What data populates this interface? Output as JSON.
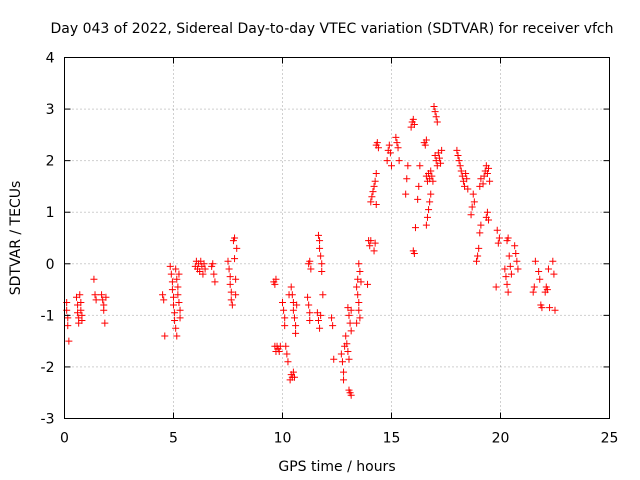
{
  "chart_data": {
    "type": "scatter",
    "title": "Day 043 of 2022, Sidereal Day-to-day VTEC variation (SDTVAR) for receiver vfch",
    "xlabel": "GPS time / hours",
    "ylabel": "SDTVAR / TECUs",
    "xlim": [
      0,
      25
    ],
    "ylim": [
      -3,
      4
    ],
    "xticks": [
      0,
      5,
      10,
      15,
      20,
      25
    ],
    "yticks": [
      -3,
      -2,
      -1,
      0,
      1,
      2,
      3,
      4
    ],
    "grid": true,
    "marker": "+",
    "color": "#ff0000",
    "series": [
      {
        "name": "SDTVAR",
        "points": [
          [
            0.1,
            -0.75
          ],
          [
            0.1,
            -0.9
          ],
          [
            0.15,
            -1.05
          ],
          [
            0.15,
            -1.2
          ],
          [
            0.2,
            -1.5
          ],
          [
            0.55,
            -0.65
          ],
          [
            0.6,
            -0.8
          ],
          [
            0.6,
            -0.95
          ],
          [
            0.65,
            -1.05
          ],
          [
            0.65,
            -1.15
          ],
          [
            0.7,
            -0.6
          ],
          [
            0.75,
            -0.75
          ],
          [
            0.75,
            -0.9
          ],
          [
            0.8,
            -1.0
          ],
          [
            0.8,
            -1.1
          ],
          [
            1.35,
            -0.3
          ],
          [
            1.4,
            -0.6
          ],
          [
            1.45,
            -0.7
          ],
          [
            1.7,
            -0.6
          ],
          [
            1.75,
            -0.7
          ],
          [
            1.8,
            -0.8
          ],
          [
            1.8,
            -0.9
          ],
          [
            1.85,
            -1.15
          ],
          [
            1.9,
            -0.65
          ],
          [
            4.5,
            -0.6
          ],
          [
            4.55,
            -0.7
          ],
          [
            4.6,
            -1.4
          ],
          [
            4.85,
            -0.05
          ],
          [
            4.9,
            -0.2
          ],
          [
            4.95,
            -0.35
          ],
          [
            4.95,
            -0.5
          ],
          [
            5.0,
            -0.65
          ],
          [
            5.0,
            -0.8
          ],
          [
            5.05,
            -0.95
          ],
          [
            5.05,
            -1.1
          ],
          [
            5.1,
            -1.25
          ],
          [
            5.15,
            -1.4
          ],
          [
            5.1,
            -0.1
          ],
          [
            5.15,
            -0.3
          ],
          [
            5.2,
            -0.45
          ],
          [
            5.2,
            -0.6
          ],
          [
            5.25,
            -0.75
          ],
          [
            5.3,
            -0.9
          ],
          [
            5.3,
            -1.05
          ],
          [
            5.25,
            -0.2
          ],
          [
            6.0,
            -0.05
          ],
          [
            6.05,
            0.05
          ],
          [
            6.1,
            -0.1
          ],
          [
            6.15,
            0.0
          ],
          [
            6.2,
            -0.15
          ],
          [
            6.25,
            0.05
          ],
          [
            6.3,
            -0.05
          ],
          [
            6.35,
            -0.2
          ],
          [
            6.4,
            0.0
          ],
          [
            6.45,
            -0.1
          ],
          [
            6.75,
            -0.05
          ],
          [
            6.8,
            0.0
          ],
          [
            6.85,
            -0.2
          ],
          [
            6.9,
            -0.35
          ],
          [
            7.5,
            0.05
          ],
          [
            7.55,
            -0.1
          ],
          [
            7.6,
            -0.25
          ],
          [
            7.6,
            -0.4
          ],
          [
            7.65,
            -0.55
          ],
          [
            7.65,
            -0.7
          ],
          [
            7.7,
            -0.8
          ],
          [
            7.75,
            0.45
          ],
          [
            7.8,
            0.5
          ],
          [
            7.8,
            0.1
          ],
          [
            7.85,
            -0.3
          ],
          [
            7.85,
            -0.6
          ],
          [
            7.9,
            0.3
          ],
          [
            9.6,
            -0.35
          ],
          [
            9.65,
            -0.4
          ],
          [
            9.7,
            -0.3
          ],
          [
            9.65,
            -1.6
          ],
          [
            9.7,
            -1.7
          ],
          [
            9.75,
            -1.6
          ],
          [
            9.8,
            -1.65
          ],
          [
            9.85,
            -1.7
          ],
          [
            9.9,
            -1.6
          ],
          [
            10.0,
            -0.75
          ],
          [
            10.05,
            -0.9
          ],
          [
            10.1,
            -1.05
          ],
          [
            10.1,
            -1.2
          ],
          [
            10.15,
            -1.6
          ],
          [
            10.2,
            -1.75
          ],
          [
            10.25,
            -1.9
          ],
          [
            10.3,
            -0.6
          ],
          [
            10.35,
            -2.25
          ],
          [
            10.4,
            -2.15
          ],
          [
            10.45,
            -2.2
          ],
          [
            10.5,
            -2.1
          ],
          [
            10.55,
            -2.2
          ],
          [
            10.4,
            -0.45
          ],
          [
            10.45,
            -0.6
          ],
          [
            10.5,
            -0.75
          ],
          [
            10.5,
            -0.9
          ],
          [
            10.55,
            -1.05
          ],
          [
            10.6,
            -1.2
          ],
          [
            10.6,
            -1.35
          ],
          [
            10.65,
            -0.8
          ],
          [
            11.15,
            -0.65
          ],
          [
            11.2,
            -0.8
          ],
          [
            11.25,
            -0.95
          ],
          [
            11.25,
            -1.1
          ],
          [
            11.2,
            0.0
          ],
          [
            11.25,
            0.05
          ],
          [
            11.3,
            -0.1
          ],
          [
            11.6,
            -0.95
          ],
          [
            11.65,
            -1.1
          ],
          [
            11.7,
            -1.25
          ],
          [
            11.75,
            -1.0
          ],
          [
            11.65,
            0.55
          ],
          [
            11.7,
            0.45
          ],
          [
            11.7,
            0.3
          ],
          [
            11.75,
            0.15
          ],
          [
            11.8,
            0.0
          ],
          [
            11.8,
            -0.15
          ],
          [
            11.85,
            -0.6
          ],
          [
            12.25,
            -1.05
          ],
          [
            12.3,
            -1.2
          ],
          [
            12.35,
            -1.85
          ],
          [
            12.7,
            -1.75
          ],
          [
            12.75,
            -1.9
          ],
          [
            12.8,
            -2.1
          ],
          [
            12.8,
            -2.25
          ],
          [
            12.85,
            -1.6
          ],
          [
            12.9,
            -1.4
          ],
          [
            12.95,
            -1.55
          ],
          [
            13.0,
            -1.7
          ],
          [
            13.05,
            -1.85
          ],
          [
            13.0,
            -0.85
          ],
          [
            13.05,
            -1.0
          ],
          [
            13.1,
            -1.15
          ],
          [
            13.15,
            -1.3
          ],
          [
            13.15,
            -0.9
          ],
          [
            13.05,
            -2.45
          ],
          [
            13.1,
            -2.5
          ],
          [
            13.15,
            -2.55
          ],
          [
            13.4,
            -0.45
          ],
          [
            13.45,
            -0.6
          ],
          [
            13.5,
            -0.75
          ],
          [
            13.5,
            -0.9
          ],
          [
            13.55,
            -1.05
          ],
          [
            13.4,
            -1.15
          ],
          [
            13.45,
            -0.3
          ],
          [
            13.5,
            0.0
          ],
          [
            13.55,
            -0.15
          ],
          [
            13.6,
            -0.35
          ],
          [
            13.9,
            -0.4
          ],
          [
            13.95,
            0.45
          ],
          [
            14.0,
            0.35
          ],
          [
            14.05,
            0.45
          ],
          [
            14.05,
            1.2
          ],
          [
            14.1,
            1.3
          ],
          [
            14.15,
            1.4
          ],
          [
            14.2,
            1.5
          ],
          [
            14.25,
            1.6
          ],
          [
            14.3,
            1.75
          ],
          [
            14.2,
            0.25
          ],
          [
            14.25,
            0.4
          ],
          [
            14.3,
            1.15
          ],
          [
            14.3,
            2.3
          ],
          [
            14.35,
            2.35
          ],
          [
            14.4,
            2.25
          ],
          [
            14.8,
            2.0
          ],
          [
            14.85,
            2.2
          ],
          [
            14.9,
            2.3
          ],
          [
            14.95,
            2.15
          ],
          [
            15.0,
            1.9
          ],
          [
            15.2,
            2.45
          ],
          [
            15.25,
            2.35
          ],
          [
            15.3,
            2.25
          ],
          [
            15.35,
            2.0
          ],
          [
            15.65,
            1.35
          ],
          [
            15.7,
            1.65
          ],
          [
            15.75,
            1.9
          ],
          [
            15.9,
            2.65
          ],
          [
            15.95,
            2.75
          ],
          [
            16.0,
            2.8
          ],
          [
            16.05,
            2.7
          ],
          [
            16.0,
            0.25
          ],
          [
            16.05,
            0.2
          ],
          [
            16.1,
            0.7
          ],
          [
            16.2,
            1.25
          ],
          [
            16.25,
            1.5
          ],
          [
            16.3,
            1.9
          ],
          [
            16.5,
            2.35
          ],
          [
            16.55,
            2.3
          ],
          [
            16.6,
            2.4
          ],
          [
            16.6,
            0.75
          ],
          [
            16.65,
            0.9
          ],
          [
            16.7,
            1.05
          ],
          [
            16.75,
            1.2
          ],
          [
            16.8,
            1.35
          ],
          [
            16.6,
            1.7
          ],
          [
            16.65,
            1.6
          ],
          [
            16.7,
            1.75
          ],
          [
            16.75,
            1.65
          ],
          [
            16.8,
            1.8
          ],
          [
            16.85,
            1.7
          ],
          [
            16.9,
            1.6
          ],
          [
            16.95,
            3.05
          ],
          [
            17.0,
            2.95
          ],
          [
            17.05,
            2.85
          ],
          [
            17.1,
            2.75
          ],
          [
            17.0,
            2.1
          ],
          [
            17.05,
            2.0
          ],
          [
            17.1,
            1.9
          ],
          [
            17.15,
            2.15
          ],
          [
            17.2,
            2.05
          ],
          [
            17.25,
            1.95
          ],
          [
            17.3,
            2.2
          ],
          [
            18.0,
            2.2
          ],
          [
            18.05,
            2.1
          ],
          [
            18.1,
            2.0
          ],
          [
            18.15,
            1.9
          ],
          [
            18.2,
            1.8
          ],
          [
            18.25,
            1.7
          ],
          [
            18.3,
            1.6
          ],
          [
            18.35,
            1.5
          ],
          [
            18.4,
            1.75
          ],
          [
            18.45,
            1.65
          ],
          [
            18.5,
            1.45
          ],
          [
            18.65,
            0.95
          ],
          [
            18.7,
            1.1
          ],
          [
            18.75,
            1.35
          ],
          [
            18.8,
            1.2
          ],
          [
            18.9,
            0.05
          ],
          [
            18.95,
            0.15
          ],
          [
            19.0,
            0.3
          ],
          [
            19.05,
            0.6
          ],
          [
            19.1,
            0.75
          ],
          [
            19.05,
            1.5
          ],
          [
            19.1,
            1.65
          ],
          [
            19.2,
            1.55
          ],
          [
            19.25,
            1.7
          ],
          [
            19.3,
            1.8
          ],
          [
            19.35,
            1.9
          ],
          [
            19.4,
            1.75
          ],
          [
            19.45,
            1.85
          ],
          [
            19.5,
            1.6
          ],
          [
            19.35,
            0.9
          ],
          [
            19.4,
            1.0
          ],
          [
            19.45,
            0.85
          ],
          [
            19.8,
            -0.45
          ],
          [
            19.85,
            0.65
          ],
          [
            19.9,
            0.4
          ],
          [
            19.95,
            0.5
          ],
          [
            20.2,
            -0.1
          ],
          [
            20.25,
            -0.25
          ],
          [
            20.3,
            -0.4
          ],
          [
            20.35,
            -0.55
          ],
          [
            20.3,
            0.45
          ],
          [
            20.35,
            0.5
          ],
          [
            20.4,
            0.15
          ],
          [
            20.45,
            -0.05
          ],
          [
            20.5,
            -0.2
          ],
          [
            20.65,
            0.35
          ],
          [
            20.7,
            0.2
          ],
          [
            20.75,
            0.05
          ],
          [
            20.8,
            -0.1
          ],
          [
            21.5,
            -0.55
          ],
          [
            21.55,
            -0.45
          ],
          [
            21.6,
            0.05
          ],
          [
            21.75,
            -0.15
          ],
          [
            21.8,
            -0.3
          ],
          [
            21.85,
            -0.8
          ],
          [
            21.9,
            -0.85
          ],
          [
            22.05,
            -0.55
          ],
          [
            22.1,
            -0.45
          ],
          [
            22.15,
            -0.5
          ],
          [
            22.2,
            -0.1
          ],
          [
            22.25,
            -0.85
          ],
          [
            22.4,
            0.05
          ],
          [
            22.45,
            -0.2
          ],
          [
            22.5,
            -0.9
          ]
        ]
      }
    ]
  }
}
